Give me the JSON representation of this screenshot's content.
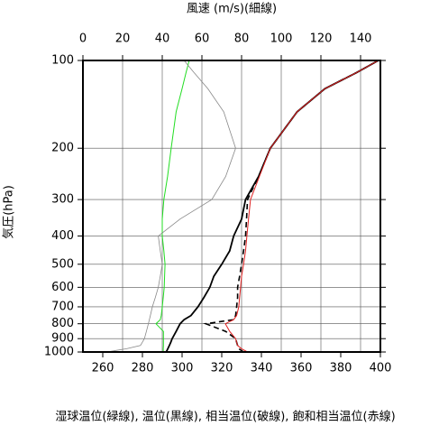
{
  "chart_data": {
    "type": "line",
    "title": "風速 (m/s)(細線)",
    "ylabel": "気圧(hPa)",
    "xlabel": "湿球温位(緑線), 温位(黒線), 相当温位(破線), 飽和相当温位(赤線)",
    "y": [
      1000,
      975,
      950,
      925,
      900,
      850,
      800,
      775,
      750,
      700,
      650,
      600,
      550,
      500,
      450,
      400,
      350,
      300,
      250,
      200,
      150,
      125,
      110,
      100
    ],
    "ylog": true,
    "ylim": [
      1000,
      100
    ],
    "yticks": [
      100,
      200,
      300,
      400,
      500,
      600,
      700,
      800,
      900,
      1000
    ],
    "xlim": [
      250,
      400
    ],
    "xticks": [
      260,
      280,
      300,
      320,
      340,
      360,
      380,
      400
    ],
    "x2lim": [
      0,
      150
    ],
    "x2ticks": [
      0,
      20,
      40,
      60,
      80,
      100,
      120,
      140
    ],
    "grid": true,
    "series": [
      {
        "name": "湿球温位",
        "color": "#22dd22",
        "dash": false,
        "width": 1,
        "axis": "x",
        "values": [
          290.5,
          290.5,
          290.6,
          290.6,
          290.6,
          290.6,
          286.8,
          289,
          289.5,
          290,
          290.5,
          291,
          291.2,
          291.4,
          290.8,
          290,
          290,
          290.8,
          292.7,
          294.5,
          297,
          300,
          302,
          303.6
        ]
      },
      {
        "name": "温位",
        "color": "#000000",
        "dash": false,
        "width": 1.8,
        "axis": "x",
        "values": [
          292,
          292.8,
          293.6,
          294.3,
          295,
          297,
          299,
          301,
          304.5,
          308,
          311,
          314,
          316,
          320,
          324,
          326,
          330,
          332,
          338.6,
          344.5,
          358,
          372,
          388,
          399
        ]
      },
      {
        "name": "相当温位",
        "color": "#000000",
        "dash": true,
        "width": 1.6,
        "axis": "x",
        "values": [
          331,
          328.6,
          328,
          327.5,
          327,
          322,
          312,
          326,
          327,
          327.5,
          328,
          328,
          329,
          330,
          331,
          332,
          332.5,
          333,
          338.6,
          344.5,
          358,
          372,
          388,
          399
        ]
      },
      {
        "name": "飽和相当温位",
        "color": "#e02020",
        "dash": false,
        "width": 1,
        "axis": "x",
        "values": [
          333,
          330,
          328,
          327.5,
          327,
          324,
          321.8,
          326,
          327.5,
          328.6,
          329,
          329.5,
          330,
          331,
          332,
          332.7,
          333.5,
          334.5,
          339,
          344.5,
          358,
          372,
          388,
          399
        ]
      },
      {
        "name": "風速",
        "color": "#888888",
        "dash": false,
        "width": 0.8,
        "axis": "x2",
        "values": [
          12,
          22,
          29,
          30,
          31,
          32,
          33,
          33.5,
          34,
          35,
          36.5,
          38,
          39,
          40,
          39,
          38,
          49,
          65,
          72,
          77,
          71,
          63,
          56,
          51
        ]
      }
    ]
  }
}
